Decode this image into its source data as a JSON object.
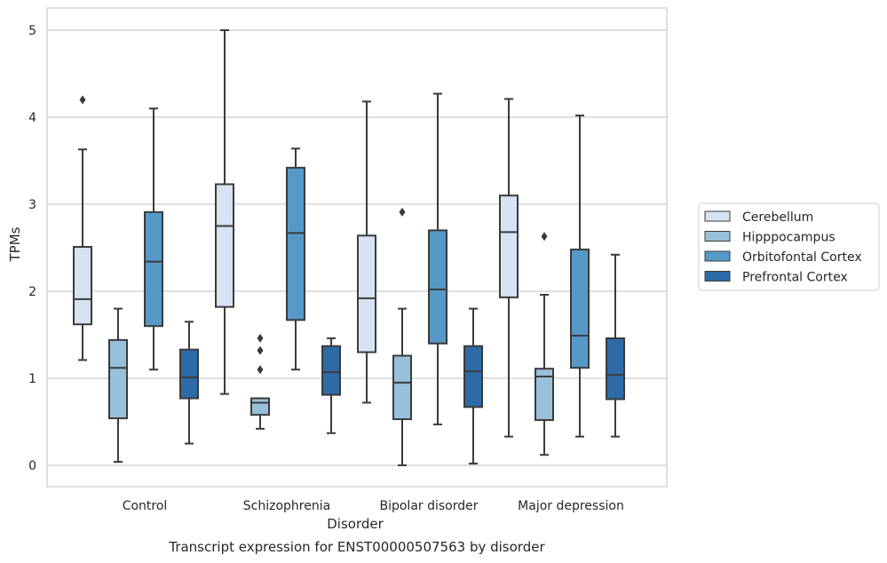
{
  "chart_data": {
    "type": "box",
    "title": "Transcript expression for ENST00000507563 by disorder",
    "xlabel": "Disorder",
    "ylabel": "TPMs",
    "ylim": [
      -0.25,
      5.25
    ],
    "yticks": [
      0,
      1,
      2,
      3,
      4,
      5
    ],
    "grid": true,
    "legend_position": "right",
    "categories": [
      "Control",
      "Schizophrenia",
      "Bipolar disorder",
      "Major depression"
    ],
    "series": [
      {
        "name": "Cerebellum",
        "color": "#d5e3f2",
        "boxes": [
          {
            "whislo": 1.21,
            "q1": 1.62,
            "med": 1.91,
            "q3": 2.51,
            "whishi": 3.63,
            "fliers": [
              4.2
            ]
          },
          {
            "whislo": 0.82,
            "q1": 1.82,
            "med": 2.75,
            "q3": 3.23,
            "whishi": 5.0,
            "fliers": []
          },
          {
            "whislo": 0.72,
            "q1": 1.3,
            "med": 1.92,
            "q3": 2.64,
            "whishi": 4.18,
            "fliers": []
          },
          {
            "whislo": 0.33,
            "q1": 1.93,
            "med": 2.68,
            "q3": 3.1,
            "whishi": 4.21,
            "fliers": []
          }
        ]
      },
      {
        "name": "Hipppocampus",
        "color": "#98c0da",
        "boxes": [
          {
            "whislo": 0.04,
            "q1": 0.54,
            "med": 1.12,
            "q3": 1.44,
            "whishi": 1.8,
            "fliers": []
          },
          {
            "whislo": 0.42,
            "q1": 0.58,
            "med": 0.72,
            "q3": 0.77,
            "whishi": 0.77,
            "fliers": [
              1.46,
              1.32,
              1.1
            ]
          },
          {
            "whislo": 0.0,
            "q1": 0.53,
            "med": 0.95,
            "q3": 1.26,
            "whishi": 1.8,
            "fliers": [
              2.91
            ]
          },
          {
            "whislo": 0.12,
            "q1": 0.52,
            "med": 1.02,
            "q3": 1.11,
            "whishi": 1.96,
            "fliers": [
              2.63
            ]
          }
        ]
      },
      {
        "name": "Orbitofontal Cortex",
        "color": "#5699c7",
        "boxes": [
          {
            "whislo": 1.1,
            "q1": 1.6,
            "med": 2.34,
            "q3": 2.91,
            "whishi": 4.1,
            "fliers": []
          },
          {
            "whislo": 1.1,
            "q1": 1.67,
            "med": 2.67,
            "q3": 3.42,
            "whishi": 3.64,
            "fliers": []
          },
          {
            "whislo": 0.47,
            "q1": 1.4,
            "med": 2.02,
            "q3": 2.7,
            "whishi": 4.27,
            "fliers": []
          },
          {
            "whislo": 0.33,
            "q1": 1.12,
            "med": 1.49,
            "q3": 2.48,
            "whishi": 4.02,
            "fliers": []
          }
        ]
      },
      {
        "name": "Prefrontal Cortex",
        "color": "#2d6aa7",
        "boxes": [
          {
            "whislo": 0.25,
            "q1": 0.77,
            "med": 1.01,
            "q3": 1.33,
            "whishi": 1.65,
            "fliers": []
          },
          {
            "whislo": 0.37,
            "q1": 0.81,
            "med": 1.07,
            "q3": 1.37,
            "whishi": 1.46,
            "fliers": []
          },
          {
            "whislo": 0.02,
            "q1": 0.67,
            "med": 1.08,
            "q3": 1.37,
            "whishi": 1.8,
            "fliers": []
          },
          {
            "whislo": 0.33,
            "q1": 0.76,
            "med": 1.04,
            "q3": 1.46,
            "whishi": 2.42,
            "fliers": []
          }
        ]
      }
    ]
  }
}
